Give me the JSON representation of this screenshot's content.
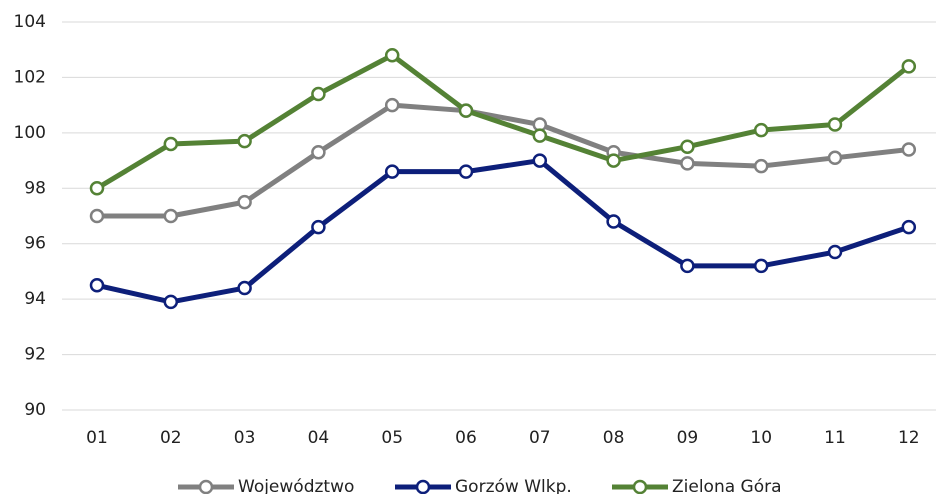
{
  "chart_data": {
    "type": "line",
    "categories": [
      "01",
      "02",
      "03",
      "04",
      "05",
      "06",
      "07",
      "08",
      "09",
      "10",
      "11",
      "12"
    ],
    "series": [
      {
        "name": "Województwo",
        "color": "#808080",
        "values": [
          97,
          97,
          97.5,
          99.3,
          101,
          100.8,
          100.3,
          99.3,
          98.9,
          98.8,
          99.1,
          99.4
        ]
      },
      {
        "name": "Gorzów Wlkp.",
        "color": "#0d1f7a",
        "values": [
          94.5,
          93.9,
          94.4,
          96.6,
          98.6,
          98.6,
          99,
          96.8,
          95.2,
          95.2,
          95.7,
          96.6
        ]
      },
      {
        "name": "Zielona Góra",
        "color": "#548235",
        "values": [
          98,
          99.6,
          99.7,
          101.4,
          102.8,
          100.8,
          99.9,
          99,
          99.5,
          100.1,
          100.3,
          102.4
        ]
      }
    ],
    "ylim": [
      90,
      104
    ],
    "yticks": [
      90,
      92,
      94,
      96,
      98,
      100,
      102,
      104
    ],
    "grid": true,
    "legend": "bottom"
  }
}
